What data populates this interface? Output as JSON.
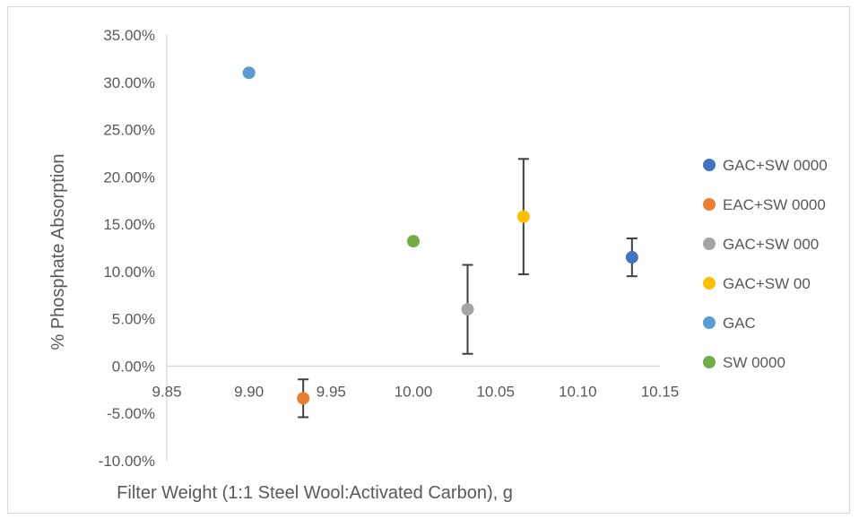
{
  "chart_data": {
    "type": "scatter",
    "title": "",
    "xlabel": "Filter Weight (1:1 Steel Wool:Activated Carbon), g",
    "ylabel": "% Phosphate Absorption",
    "xlim": [
      9.85,
      10.15
    ],
    "ylim": [
      -0.1,
      0.35
    ],
    "x_ticks": [
      9.85,
      9.9,
      9.95,
      10.0,
      10.05,
      10.1,
      10.15
    ],
    "x_tick_labels": [
      "9.85",
      "9.90",
      "9.95",
      "10.00",
      "10.05",
      "10.10",
      "10.15"
    ],
    "y_ticks": [
      0.35,
      0.3,
      0.25,
      0.2,
      0.15,
      0.1,
      0.05,
      0.0,
      -0.05,
      -0.1
    ],
    "y_tick_labels": [
      "35.00%",
      "30.00%",
      "25.00%",
      "20.00%",
      "15.00%",
      "10.00%",
      "5.00%",
      "0.00%",
      "-5.00%",
      "-10.00%"
    ],
    "grid": false,
    "legend_position": "right",
    "series": [
      {
        "name": "GAC+SW 0000",
        "color": "#4472c4",
        "points": [
          {
            "x": 10.133,
            "y": 0.115,
            "err": 0.02
          }
        ]
      },
      {
        "name": "EAC+SW 0000",
        "color": "#ed7d31",
        "points": [
          {
            "x": 9.933,
            "y": -0.034,
            "err": 0.02
          }
        ]
      },
      {
        "name": "GAC+SW 000",
        "color": "#a5a5a5",
        "points": [
          {
            "x": 10.033,
            "y": 0.06,
            "err": 0.047
          }
        ]
      },
      {
        "name": "GAC+SW 00",
        "color": "#ffc000",
        "points": [
          {
            "x": 10.067,
            "y": 0.158,
            "err": 0.061
          }
        ]
      },
      {
        "name": "GAC",
        "color": "#5b9bd5",
        "points": [
          {
            "x": 9.9,
            "y": 0.31
          }
        ]
      },
      {
        "name": "SW 0000",
        "color": "#70ad47",
        "points": [
          {
            "x": 10.0,
            "y": 0.132
          }
        ]
      }
    ]
  }
}
